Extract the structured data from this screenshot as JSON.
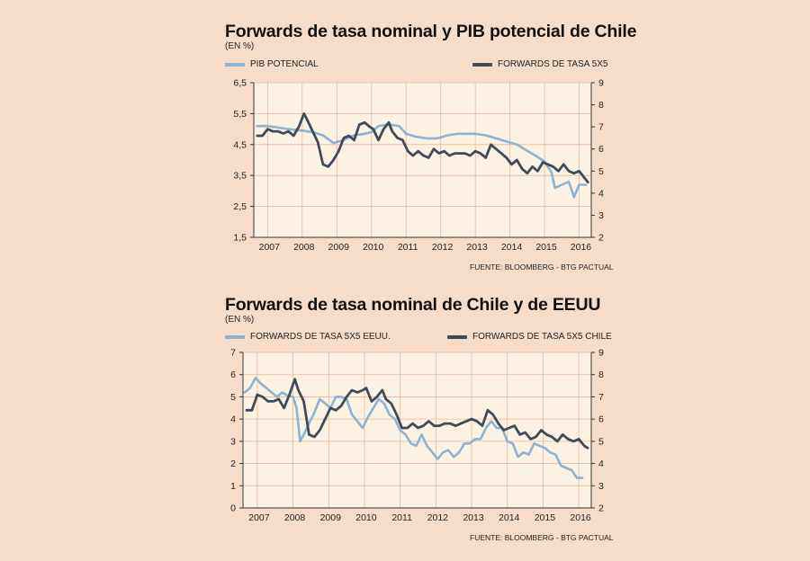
{
  "colors": {
    "background": "#f7dcc8",
    "plot_background": "#fcf2e3",
    "grid": "#e7b89c",
    "light_series": "#8cb3d3",
    "dark_series": "#3d4b5b"
  },
  "chart_data": [
    {
      "type": "line",
      "title": "Forwards de tasa nominal y PIB potencial de Chile",
      "subtitle": "(EN %)",
      "source": "FUENTE: BLOOMBERG - BTG PACTUAL",
      "x_labels": [
        "2007",
        "2008",
        "2009",
        "2010",
        "2011",
        "2012",
        "2013",
        "2014",
        "2015",
        "2016"
      ],
      "left_axis": {
        "ticks": [
          "6,5",
          "5,5",
          "4,5",
          "3,5",
          "2,5",
          "1,5"
        ],
        "range": [
          1.5,
          6.5
        ]
      },
      "right_axis": {
        "ticks": [
          "9",
          "8",
          "7",
          "6",
          "5",
          "4",
          "3",
          "2"
        ],
        "range": [
          2,
          9
        ]
      },
      "grid": true,
      "legend_placement": "top",
      "series": [
        {
          "name": "PIB POTENCIAL",
          "axis": "left",
          "color": "#8cb3d3",
          "x": [
            2006.7,
            2007.0,
            2007.3,
            2007.6,
            2008.0,
            2008.3,
            2008.6,
            2008.9,
            2009.2,
            2009.5,
            2009.8,
            2010.0,
            2010.2,
            2010.5,
            2010.8,
            2011.0,
            2011.3,
            2011.6,
            2011.9,
            2012.2,
            2012.5,
            2012.8,
            2013.0,
            2013.3,
            2013.6,
            2013.9,
            2014.2,
            2014.5,
            2014.8,
            2015.0,
            2015.2,
            2015.3,
            2015.5,
            2015.7,
            2015.85,
            2016.0,
            2016.2
          ],
          "y": [
            5.1,
            5.1,
            5.05,
            5.0,
            4.95,
            4.9,
            4.8,
            4.55,
            4.65,
            4.8,
            4.85,
            4.9,
            5.1,
            5.15,
            5.1,
            4.85,
            4.75,
            4.7,
            4.7,
            4.8,
            4.85,
            4.85,
            4.85,
            4.8,
            4.7,
            4.6,
            4.5,
            4.3,
            4.1,
            3.95,
            3.6,
            3.1,
            3.2,
            3.3,
            2.8,
            3.2,
            3.2
          ]
        },
        {
          "name": "FORWARDS DE TASA 5X5",
          "axis": "right",
          "color": "#3d4b5b",
          "x": [
            2006.7,
            2006.85,
            2007.0,
            2007.15,
            2007.3,
            2007.45,
            2007.6,
            2007.75,
            2007.9,
            2008.05,
            2008.15,
            2008.3,
            2008.45,
            2008.6,
            2008.75,
            2008.9,
            2009.05,
            2009.2,
            2009.35,
            2009.5,
            2009.65,
            2009.8,
            2009.95,
            2010.05,
            2010.2,
            2010.35,
            2010.5,
            2010.6,
            2010.75,
            2010.9,
            2011.05,
            2011.2,
            2011.35,
            2011.5,
            2011.65,
            2011.8,
            2011.95,
            2012.1,
            2012.25,
            2012.4,
            2012.55,
            2012.7,
            2012.85,
            2013.0,
            2013.15,
            2013.3,
            2013.45,
            2013.6,
            2013.75,
            2013.9,
            2014.05,
            2014.2,
            2014.35,
            2014.5,
            2014.65,
            2014.8,
            2014.95,
            2015.1,
            2015.25,
            2015.4,
            2015.55,
            2015.7,
            2015.85,
            2016.0,
            2016.15,
            2016.25
          ],
          "y": [
            6.6,
            6.6,
            6.9,
            6.8,
            6.8,
            6.7,
            6.8,
            6.6,
            7.0,
            7.6,
            7.3,
            6.8,
            6.3,
            5.3,
            5.2,
            5.5,
            5.9,
            6.5,
            6.6,
            6.4,
            7.1,
            7.2,
            7.0,
            6.9,
            6.4,
            6.9,
            7.2,
            6.8,
            6.5,
            6.4,
            5.9,
            5.7,
            5.9,
            5.7,
            5.6,
            6.0,
            5.8,
            5.9,
            5.7,
            5.8,
            5.8,
            5.8,
            5.7,
            5.9,
            5.8,
            5.6,
            6.2,
            6.0,
            5.8,
            5.6,
            5.3,
            5.5,
            5.1,
            4.9,
            5.2,
            5.0,
            5.4,
            5.3,
            5.2,
            5.0,
            5.3,
            5.0,
            4.9,
            5.0,
            4.7,
            4.5
          ]
        }
      ]
    },
    {
      "type": "line",
      "title": "Forwards de tasa nominal de Chile y de EEUU",
      "subtitle": "(EN %)",
      "source": "FUENTE: BLOOMBERG - BTG PACTUAL",
      "x_labels": [
        "2007",
        "2008",
        "2009",
        "2010",
        "2011",
        "2012",
        "2013",
        "2014",
        "2015",
        "2016"
      ],
      "left_axis": {
        "ticks": [
          "7",
          "6",
          "5",
          "4",
          "3",
          "2",
          "1",
          "0"
        ],
        "range": [
          0,
          7
        ]
      },
      "right_axis": {
        "ticks": [
          "9",
          "8",
          "7",
          "6",
          "5",
          "4",
          "3",
          "2"
        ],
        "range": [
          2,
          9
        ]
      },
      "grid": true,
      "legend_placement": "top",
      "series": [
        {
          "name": "FORWARDS DE TASA 5X5 EEUU.",
          "axis": "left",
          "color": "#8cb3d3",
          "x": [
            2006.65,
            2006.8,
            2006.95,
            2007.1,
            2007.25,
            2007.4,
            2007.55,
            2007.7,
            2007.85,
            2008.0,
            2008.1,
            2008.2,
            2008.3,
            2008.45,
            2008.6,
            2008.75,
            2008.9,
            2009.05,
            2009.2,
            2009.35,
            2009.5,
            2009.65,
            2009.8,
            2009.95,
            2010.1,
            2010.25,
            2010.4,
            2010.55,
            2010.7,
            2010.85,
            2011.0,
            2011.15,
            2011.3,
            2011.45,
            2011.6,
            2011.75,
            2011.9,
            2012.05,
            2012.2,
            2012.35,
            2012.5,
            2012.65,
            2012.8,
            2012.95,
            2013.1,
            2013.25,
            2013.4,
            2013.55,
            2013.7,
            2013.85,
            2014.0,
            2014.15,
            2014.3,
            2014.45,
            2014.6,
            2014.75,
            2014.9,
            2015.05,
            2015.2,
            2015.35,
            2015.5,
            2015.65,
            2015.8,
            2015.95,
            2016.1
          ],
          "y": [
            5.2,
            5.4,
            5.85,
            5.6,
            5.4,
            5.2,
            5.0,
            5.2,
            5.05,
            5.0,
            4.5,
            3.0,
            3.3,
            3.8,
            4.3,
            4.9,
            4.7,
            4.5,
            5.0,
            5.0,
            4.9,
            4.2,
            3.9,
            3.6,
            4.1,
            4.5,
            4.9,
            4.7,
            4.2,
            4.0,
            3.5,
            3.3,
            2.9,
            2.8,
            3.3,
            2.8,
            2.5,
            2.2,
            2.5,
            2.6,
            2.3,
            2.5,
            2.9,
            2.9,
            3.1,
            3.1,
            3.6,
            3.9,
            3.6,
            3.6,
            3.0,
            2.9,
            2.3,
            2.5,
            2.4,
            2.9,
            2.8,
            2.7,
            2.5,
            2.4,
            1.9,
            1.8,
            1.7,
            1.35,
            1.35
          ]
        },
        {
          "name": "FORWARDS DE TASA 5X5 CHILE",
          "axis": "right",
          "color": "#3d4b5b",
          "x": [
            2006.7,
            2006.85,
            2007.0,
            2007.15,
            2007.3,
            2007.45,
            2007.6,
            2007.75,
            2007.9,
            2008.05,
            2008.15,
            2008.3,
            2008.45,
            2008.6,
            2008.75,
            2008.9,
            2009.05,
            2009.2,
            2009.35,
            2009.5,
            2009.65,
            2009.8,
            2009.95,
            2010.05,
            2010.2,
            2010.35,
            2010.5,
            2010.6,
            2010.75,
            2010.9,
            2011.05,
            2011.2,
            2011.35,
            2011.5,
            2011.65,
            2011.8,
            2011.95,
            2012.1,
            2012.25,
            2012.4,
            2012.55,
            2012.7,
            2012.85,
            2013.0,
            2013.15,
            2013.3,
            2013.45,
            2013.6,
            2013.75,
            2013.9,
            2014.05,
            2014.2,
            2014.35,
            2014.5,
            2014.65,
            2014.8,
            2014.95,
            2015.1,
            2015.25,
            2015.4,
            2015.55,
            2015.7,
            2015.85,
            2016.0,
            2016.15,
            2016.25
          ],
          "y": [
            6.4,
            6.4,
            7.1,
            7.0,
            6.8,
            6.8,
            6.9,
            6.5,
            7.1,
            7.8,
            7.3,
            6.8,
            5.3,
            5.2,
            5.5,
            6.0,
            6.5,
            6.4,
            6.6,
            7.0,
            7.3,
            7.2,
            7.3,
            7.4,
            6.8,
            7.0,
            7.3,
            6.9,
            6.7,
            6.2,
            5.6,
            5.6,
            5.8,
            5.6,
            5.7,
            5.9,
            5.7,
            5.7,
            5.8,
            5.8,
            5.7,
            5.8,
            5.9,
            6.0,
            5.9,
            5.7,
            6.4,
            6.2,
            5.8,
            5.5,
            5.6,
            5.7,
            5.3,
            5.4,
            5.1,
            5.2,
            5.5,
            5.3,
            5.2,
            5.0,
            5.3,
            5.1,
            5.0,
            5.1,
            4.8,
            4.7
          ]
        }
      ]
    }
  ]
}
